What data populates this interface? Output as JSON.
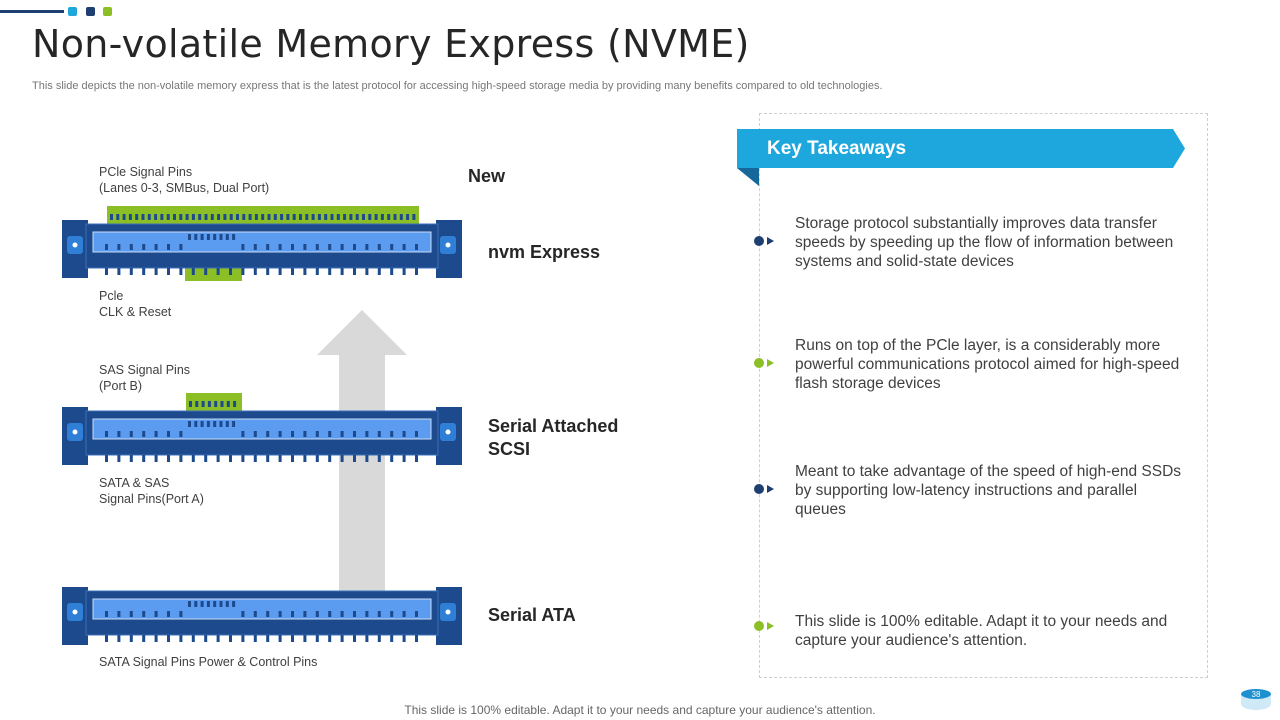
{
  "header": {
    "title": "Non-volatile Memory Express (NVME)",
    "subtitle": "This slide depicts the non-volatile memory express that is the latest protocol for accessing high-speed storage media by providing many benefits compared to old technologies."
  },
  "colors": {
    "accent_light": "#1ea7dc",
    "accent_dark": "#1f3f73",
    "accent_green": "#8cbf26",
    "connector_body": "#1c4a8c",
    "connector_inner": "#5b9bf0",
    "arrow": "#d9d9d9"
  },
  "diagram": {
    "arrow_label": "New",
    "connectors": [
      {
        "tier": "nvm Express",
        "top_label": [
          "PCle Signal Pins",
          "(Lanes 0-3, SMBus, Dual Port)"
        ],
        "bottom_label": [
          "Pcle",
          "CLK & Reset"
        ]
      },
      {
        "tier": "Serial Attached SCSI",
        "top_label": [
          "SAS Signal Pins",
          "(Port B)"
        ],
        "bottom_label": [
          "SATA & SAS",
          "Signal Pins(Port A)"
        ]
      },
      {
        "tier": "Serial ATA",
        "top_label": [],
        "bottom_label": [
          "SATA Signal Pins Power  & Control Pins"
        ]
      }
    ]
  },
  "takeaways": {
    "title": "Key Takeaways",
    "items": [
      {
        "text": "Storage protocol substantially  improves data transfer speeds by speeding up the flow of information between systems and solid-state devices",
        "color": "#1f3f73"
      },
      {
        "text": "Runs  on top of the PCle layer, is a considerably more powerful communications protocol aimed for high-speed flash storage devices",
        "color": "#8cbf26"
      },
      {
        "text": "Meant to take advantage of the speed of high-end SSDs by supporting low-latency  instructions and parallel queues",
        "color": "#1f3f73"
      },
      {
        "text": "This slide is 100% editable. Adapt it to your needs and capture your audience's attention.",
        "color": "#8cbf26"
      }
    ]
  },
  "footer": {
    "text": "This slide is 100% editable. Adapt it to your needs and capture your audience's attention.",
    "page_number": "38"
  }
}
